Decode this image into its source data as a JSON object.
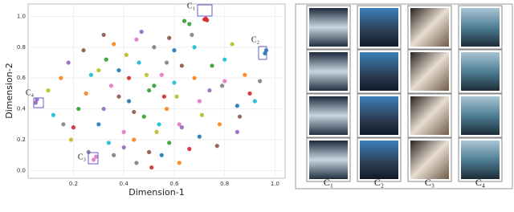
{
  "chart_data": {
    "type": "scatter",
    "xlabel": "Dimension-1",
    "ylabel": "Dimension-2",
    "xlim": [
      0.02,
      1.04
    ],
    "ylim": [
      -0.05,
      1.08
    ],
    "xticks": [
      0.2,
      0.4,
      0.6,
      0.8,
      {
        "value": 1,
        "label": "1.0"
      }
    ],
    "yticks": [
      {
        "value": 0,
        "label": "0.0"
      },
      0.2,
      0.4,
      0.6,
      0.8,
      {
        "value": 1,
        "label": "1.0"
      }
    ],
    "grid": true,
    "annotations": [
      "C₁",
      "C₂",
      "C₃",
      "C₄"
    ],
    "series": [
      {
        "color": "#e377c2",
        "x": [
          0.28,
          0.29,
          0.45,
          0.62,
          0.35,
          0.55,
          0.7,
          0.4,
          0.8
        ],
        "y": [
          0.07,
          0.09,
          0.85,
          0.3,
          0.55,
          0.62,
          0.45,
          0.25,
          0.58
        ]
      },
      {
        "color": "#2ca02c",
        "x": [
          0.5,
          0.52,
          0.64,
          0.66,
          0.33,
          0.48,
          0.58,
          0.75,
          0.22
        ],
        "y": [
          0.52,
          0.55,
          0.97,
          0.95,
          0.72,
          0.35,
          0.18,
          0.68,
          0.4
        ]
      },
      {
        "color": "#1f77b4",
        "x": [
          0.96,
          0.965,
          0.42,
          0.6,
          0.3,
          0.7,
          0.85,
          0.38,
          0.55
        ],
        "y": [
          0.76,
          0.78,
          0.45,
          0.78,
          0.3,
          0.22,
          0.42,
          0.65,
          0.1
        ]
      },
      {
        "color": "#ff7f0e",
        "x": [
          0.15,
          0.44,
          0.57,
          0.68,
          0.78,
          0.36,
          0.25,
          0.62,
          0.88
        ],
        "y": [
          0.6,
          0.2,
          0.4,
          0.6,
          0.3,
          0.82,
          0.5,
          0.05,
          0.62
        ]
      },
      {
        "color": "#9467bd",
        "x": [
          0.05,
          0.055,
          0.18,
          0.32,
          0.47,
          0.74,
          0.63,
          0.85,
          0.4
        ],
        "y": [
          0.44,
          0.46,
          0.7,
          0.4,
          0.9,
          0.52,
          0.28,
          0.25,
          0.15
        ]
      },
      {
        "color": "#d62728",
        "x": [
          0.72,
          0.725,
          0.73,
          0.42,
          0.56,
          0.66,
          0.2,
          0.9,
          0.51
        ],
        "y": [
          0.98,
          0.985,
          0.975,
          0.6,
          0.48,
          0.14,
          0.28,
          0.5,
          0.02
        ]
      },
      {
        "color": "#17becf",
        "x": [
          0.12,
          0.34,
          0.46,
          0.54,
          0.68,
          0.8,
          0.27,
          0.6,
          0.92
        ],
        "y": [
          0.36,
          0.18,
          0.7,
          0.3,
          0.8,
          0.72,
          0.62,
          0.57,
          0.45
        ]
      },
      {
        "color": "#8c564b",
        "x": [
          0.24,
          0.38,
          0.5,
          0.63,
          0.77,
          0.44,
          0.32,
          0.58,
          0.86
        ],
        "y": [
          0.78,
          0.48,
          0.12,
          0.68,
          0.16,
          0.38,
          0.88,
          0.86,
          0.35
        ]
      },
      {
        "color": "#bcbd22",
        "x": [
          0.1,
          0.3,
          0.49,
          0.61,
          0.71,
          0.83,
          0.41,
          0.53,
          0.19
        ],
        "y": [
          0.52,
          0.65,
          0.62,
          0.48,
          0.36,
          0.82,
          0.75,
          0.25,
          0.2
        ]
      },
      {
        "color": "#7f7f7f",
        "x": [
          0.16,
          0.36,
          0.52,
          0.67,
          0.79,
          0.45,
          0.26,
          0.57,
          0.94
        ],
        "y": [
          0.3,
          0.1,
          0.8,
          0.88,
          0.55,
          0.05,
          0.12,
          0.7,
          0.58
        ]
      }
    ]
  },
  "image_grid": {
    "columns": [
      "C₁",
      "C₂",
      "C₃",
      "C₄"
    ]
  }
}
